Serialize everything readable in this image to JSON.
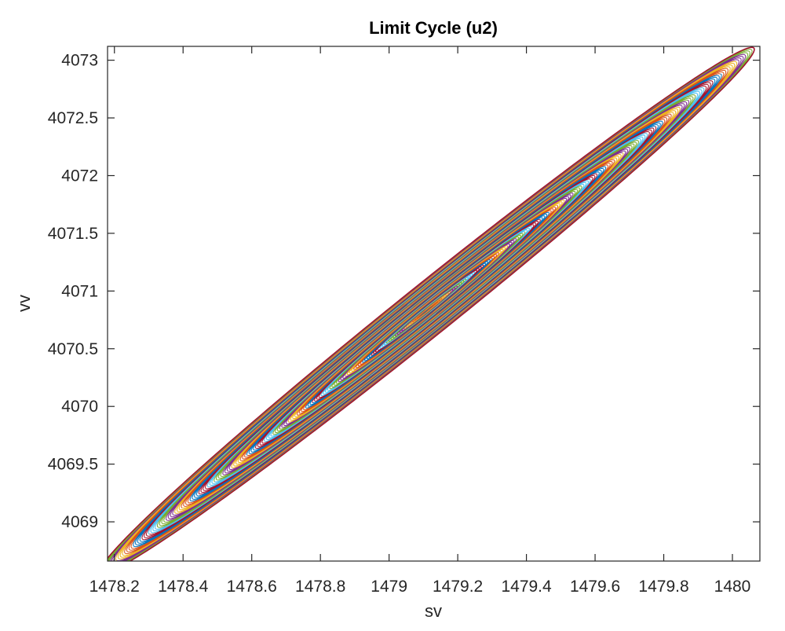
{
  "chart_data": {
    "type": "line",
    "title": "Limit Cycle (u2)",
    "xlabel": "sv",
    "ylabel": "vv",
    "xlim": [
      1478.18,
      1480.08
    ],
    "ylim": [
      4068.66,
      4073.12
    ],
    "xticks": [
      1478.2,
      1478.4,
      1478.6,
      1478.8,
      1479,
      1479.2,
      1479.4,
      1479.6,
      1479.8,
      1480
    ],
    "xtick_labels": [
      "1478.2",
      "1478.4",
      "1478.6",
      "1478.8",
      "1479",
      "1479.2",
      "1479.4",
      "1479.6",
      "1479.8",
      "1480"
    ],
    "yticks": [
      4069,
      4069.5,
      4070,
      4070.5,
      4071,
      4071.5,
      4072,
      4072.5,
      4073
    ],
    "ytick_labels": [
      "4069",
      "4069.5",
      "4070",
      "4070.5",
      "4071",
      "4071.5",
      "4072",
      "4072.5",
      "4073"
    ],
    "grid": false,
    "trajectory": {
      "description_kind": "outward spiral",
      "center": [
        1479.11,
        4070.83
      ],
      "semi_major": [
        0.95,
        2.28
      ],
      "semi_minor": [
        -0.085,
        0.078
      ],
      "turns": 150
    },
    "series_colors": [
      "#0072BD",
      "#D95319",
      "#EDB120",
      "#7E2F8E",
      "#77AC30",
      "#4DBEEE",
      "#A2142F"
    ]
  }
}
